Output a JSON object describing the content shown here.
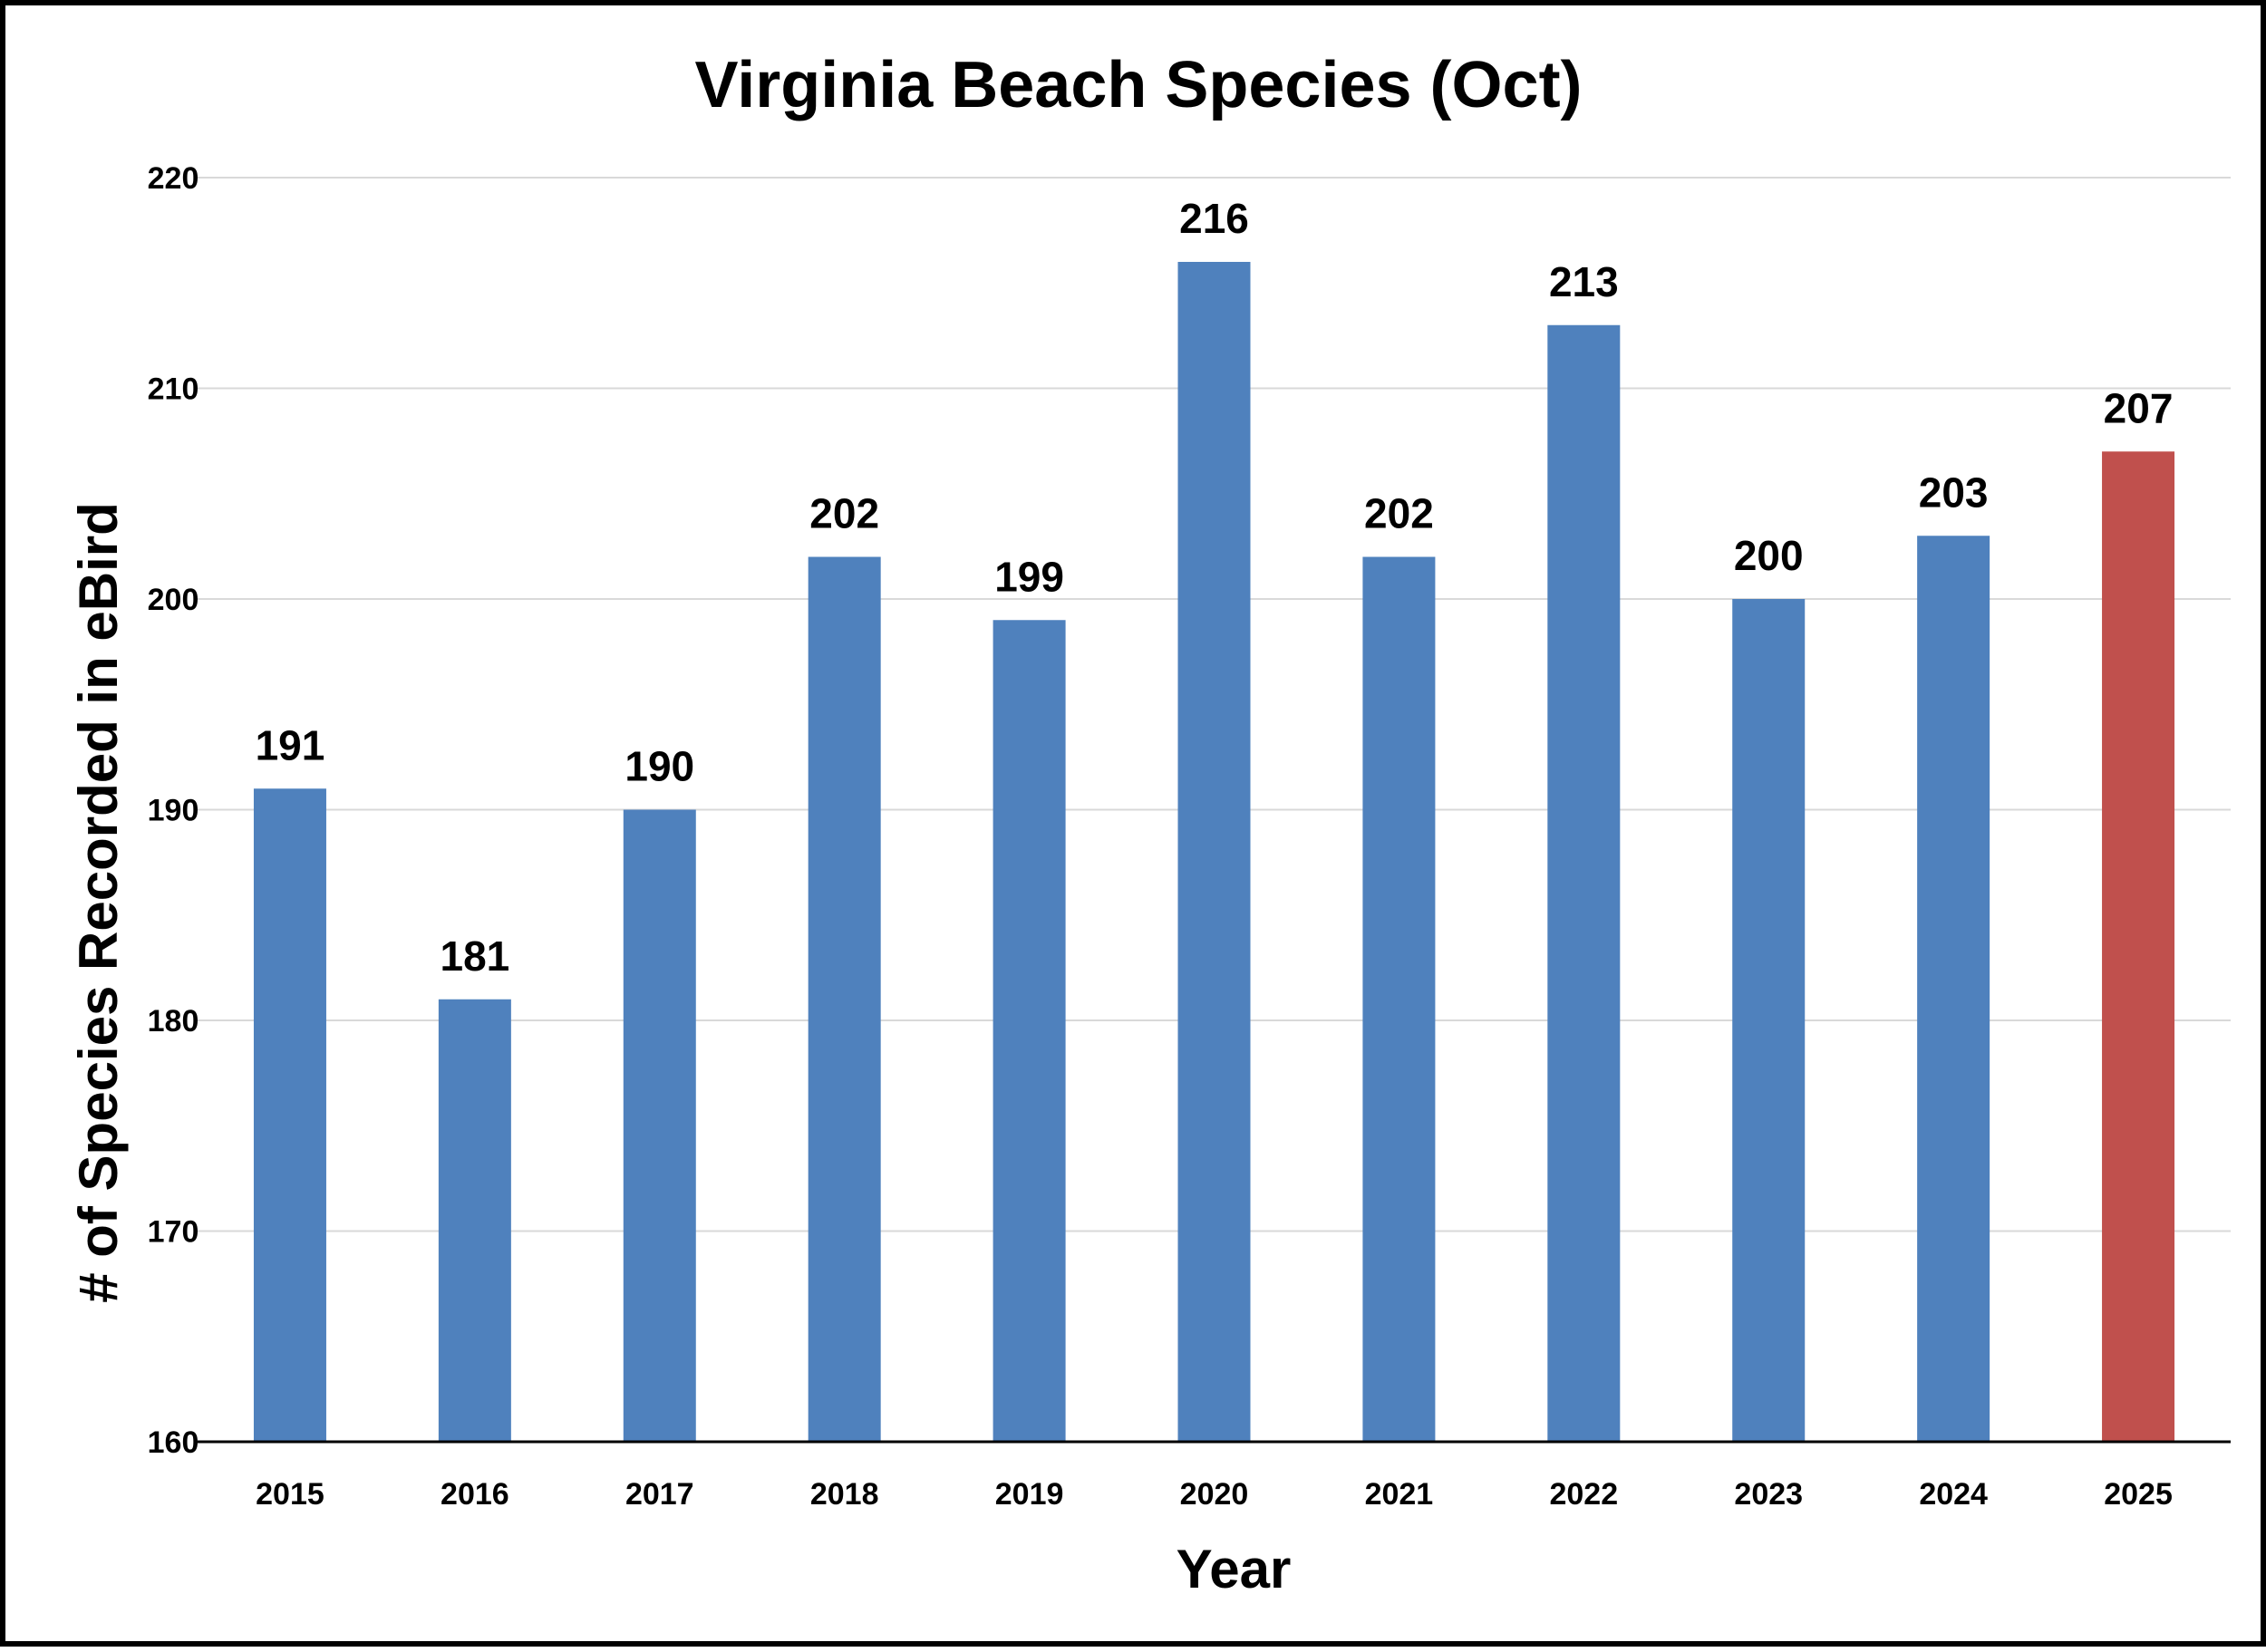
{
  "chart_data": {
    "type": "bar",
    "title": "Virginia Beach Species (Oct)",
    "xlabel": "Year",
    "ylabel": "# of Species Recorded in eBird",
    "categories": [
      "2015",
      "2016",
      "2017",
      "2018",
      "2019",
      "2020",
      "2021",
      "2022",
      "2023",
      "2024",
      "2025"
    ],
    "values": [
      191,
      181,
      190,
      202,
      199,
      216,
      202,
      213,
      200,
      203,
      207
    ],
    "data_labels": [
      "191",
      "181",
      "190",
      "202",
      "199",
      "216",
      "202",
      "213",
      "200",
      "203",
      "207"
    ],
    "highlight_category": "2025",
    "ylim": [
      160,
      220
    ],
    "yticks": [
      160,
      170,
      180,
      190,
      200,
      210,
      220
    ],
    "ytick_labels": [
      "160",
      "170",
      "180",
      "190",
      "200",
      "210",
      "220"
    ],
    "grid": true,
    "legend": "none",
    "colors": {
      "bar": "#4f81bd",
      "highlight": "#c0504d",
      "grid": "#d9d9d9",
      "axis": "#000000"
    }
  }
}
